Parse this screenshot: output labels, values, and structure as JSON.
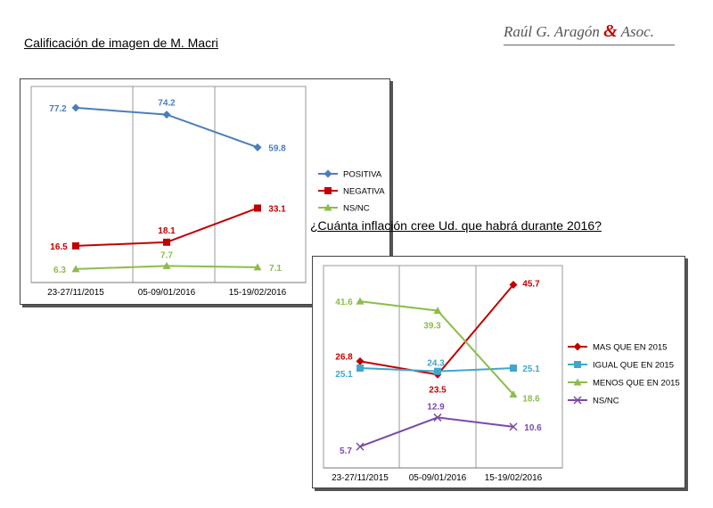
{
  "brand": {
    "name_part1": "Raúl G. Aragón ",
    "amp": "&",
    "name_part2": " Asoc."
  },
  "chart_data": [
    {
      "type": "line",
      "title": "Calificación de imagen de M. Macri",
      "categories": [
        "23-27/11/2015",
        "05-09/01/2016",
        "15-19/02/2016"
      ],
      "ylim": [
        0,
        85
      ],
      "grid": "vertical",
      "legend_placement": "right",
      "series": [
        {
          "name": "POSITIVA",
          "values": [
            77.2,
            74.2,
            59.8
          ],
          "labels": [
            "77.2",
            "74.2",
            "59.8"
          ],
          "color": "#4a7ebb",
          "marker": "diamond"
        },
        {
          "name": "NEGATIVA",
          "values": [
            16.5,
            18.1,
            33.1
          ],
          "labels": [
            "16.5",
            "18.1",
            "33.1"
          ],
          "color": "#c00000",
          "marker": "square"
        },
        {
          "name": "NS/NC",
          "values": [
            6.3,
            7.7,
            7.1
          ],
          "labels": [
            "6.3",
            "7.7",
            "7.1"
          ],
          "color": "#8cbd4a",
          "marker": "triangle"
        }
      ]
    },
    {
      "type": "line",
      "title": "¿Cuánta inflación cree Ud. que habrá durante 2016?",
      "categories": [
        "23-27/11/2015",
        "05-09/01/2016",
        "15-19/02/2016"
      ],
      "ylim": [
        0,
        50
      ],
      "grid": "vertical",
      "legend_placement": "right",
      "series": [
        {
          "name": "MAS QUE EN 2015",
          "values": [
            26.8,
            23.5,
            45.7
          ],
          "labels": [
            "26.8",
            "23.5",
            "45.7"
          ],
          "color": "#c00000",
          "marker": "diamond"
        },
        {
          "name": "IGUAL QUE EN 2015",
          "values": [
            25.1,
            24.3,
            25.1
          ],
          "labels": [
            "25.1",
            "24.3",
            "25.1"
          ],
          "color": "#40a6cc",
          "marker": "square"
        },
        {
          "name": "MENOS QUE EN  2015",
          "values": [
            41.6,
            39.3,
            18.6
          ],
          "labels": [
            "41.6",
            "39.3",
            "18.6"
          ],
          "color": "#8cbd4a",
          "marker": "triangle"
        },
        {
          "name": "NS/NC",
          "values": [
            5.7,
            12.9,
            10.6
          ],
          "labels": [
            "5.7",
            "12.9",
            "10.6"
          ],
          "color": "#7a4aa8",
          "marker": "x"
        }
      ]
    }
  ]
}
